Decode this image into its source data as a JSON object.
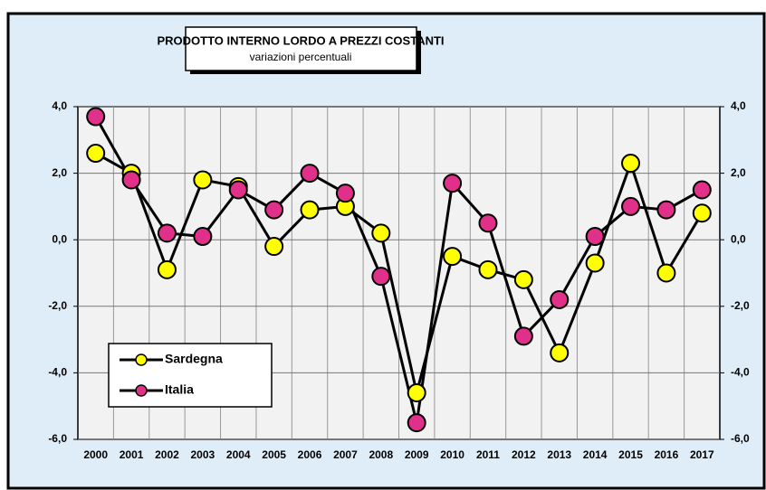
{
  "chart_data": {
    "type": "line",
    "title": "PRODOTTO INTERNO LORDO A PREZZI COSTANTI",
    "subtitle": "variazioni percentuali",
    "categories": [
      "2000",
      "2001",
      "2002",
      "2003",
      "2004",
      "2005",
      "2006",
      "2007",
      "2008",
      "2009",
      "2010",
      "2011",
      "2012",
      "2013",
      "2014",
      "2015",
      "2016",
      "2017"
    ],
    "series": [
      {
        "name": "Sardegna",
        "color": "#ffff00",
        "values": [
          2.6,
          2.0,
          -0.9,
          1.8,
          1.6,
          -0.2,
          0.9,
          1.0,
          0.2,
          -4.6,
          -0.5,
          -0.9,
          -1.2,
          -3.4,
          -0.7,
          2.3,
          -1.0,
          0.8
        ]
      },
      {
        "name": "Italia",
        "color": "#e0308a",
        "values": [
          3.7,
          1.8,
          0.2,
          0.1,
          1.5,
          0.9,
          2.0,
          1.4,
          -1.1,
          -5.5,
          1.7,
          0.5,
          -2.9,
          -1.8,
          0.1,
          1.0,
          0.9,
          1.5
        ]
      }
    ],
    "ylim": [
      -6,
      4
    ],
    "yticks": [
      {
        "value": -6,
        "label": "-6,0"
      },
      {
        "value": -4,
        "label": "-4,0"
      },
      {
        "value": -2,
        "label": "-2,0"
      },
      {
        "value": 0,
        "label": "0,0"
      },
      {
        "value": 2,
        "label": "2,0"
      },
      {
        "value": 4,
        "label": "4,0"
      }
    ],
    "grid": true,
    "legend": "lower left"
  }
}
